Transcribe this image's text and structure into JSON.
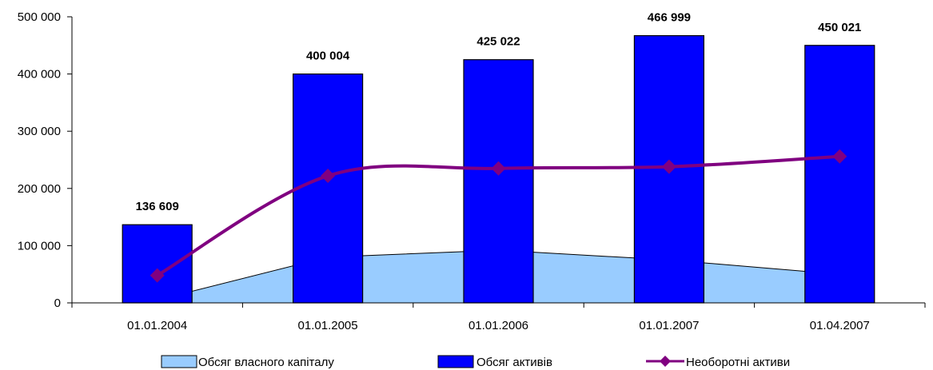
{
  "chart_data": {
    "type": "bar",
    "categories": [
      "01.01.2004",
      "01.01.2005",
      "01.01.2006",
      "01.01.2007",
      "01.04.2007"
    ],
    "ylim": [
      0,
      500000
    ],
    "yticks": [
      0,
      100000,
      200000,
      300000,
      400000,
      500000
    ],
    "ytick_labels": [
      "0",
      "100 000",
      "200 000",
      "300 000",
      "400 000",
      "500 000"
    ],
    "series": [
      {
        "name": "Обсяг власного капіталу",
        "type": "area",
        "values": [
          5000,
          80000,
          92000,
          75000,
          50000
        ],
        "color": "#99ccff"
      },
      {
        "name": "Обсяг активів",
        "type": "bar",
        "values": [
          136609,
          400004,
          425022,
          466999,
          450021
        ],
        "labels": [
          "136 609",
          "400 004",
          "425 022",
          "466 999",
          "450 021"
        ],
        "color": "#0000ff"
      },
      {
        "name": "Необоротні активи",
        "type": "line",
        "values": [
          48000,
          222000,
          235000,
          238000,
          256000
        ],
        "color": "#800080"
      }
    ],
    "grid": false,
    "legend": "bottom"
  }
}
